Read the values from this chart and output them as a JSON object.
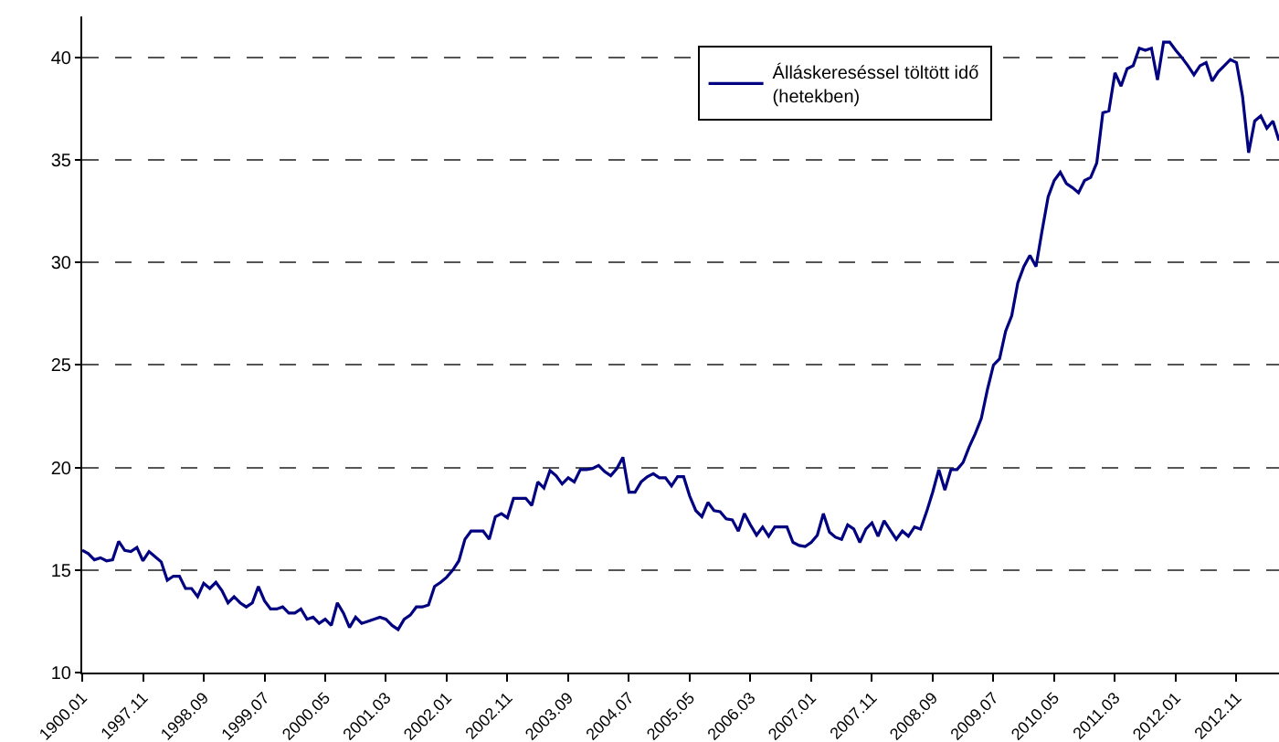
{
  "chart_data": {
    "type": "line",
    "categories": [
      "1900.01",
      null,
      null,
      null,
      null,
      null,
      null,
      null,
      null,
      null,
      "1997.11",
      null,
      null,
      null,
      null,
      null,
      null,
      null,
      null,
      null,
      "1998.09",
      null,
      null,
      null,
      null,
      null,
      null,
      null,
      null,
      null,
      "1999.07",
      null,
      null,
      null,
      null,
      null,
      null,
      null,
      null,
      null,
      "2000.05",
      null,
      null,
      null,
      null,
      null,
      null,
      null,
      null,
      null,
      "2001.03",
      null,
      null,
      null,
      null,
      null,
      null,
      null,
      null,
      null,
      "2002.01",
      null,
      null,
      null,
      null,
      null,
      null,
      null,
      null,
      null,
      "2002.11",
      null,
      null,
      null,
      null,
      null,
      null,
      null,
      null,
      null,
      "2003.09",
      null,
      null,
      null,
      null,
      null,
      null,
      null,
      null,
      null,
      "2004.07",
      null,
      null,
      null,
      null,
      null,
      null,
      null,
      null,
      null,
      "2005.05",
      null,
      null,
      null,
      null,
      null,
      null,
      null,
      null,
      null,
      "2006.03",
      null,
      null,
      null,
      null,
      null,
      null,
      null,
      null,
      null,
      "2007.01",
      null,
      null,
      null,
      null,
      null,
      null,
      null,
      null,
      null,
      "2007.11",
      null,
      null,
      null,
      null,
      null,
      null,
      null,
      null,
      null,
      "2008.09",
      null,
      null,
      null,
      null,
      null,
      null,
      null,
      null,
      null,
      "2009.07",
      null,
      null,
      null,
      null,
      null,
      null,
      null,
      null,
      null,
      "2010.05",
      null,
      null,
      null,
      null,
      null,
      null,
      null,
      null,
      null,
      "2011.03",
      null,
      null,
      null,
      null,
      null,
      null,
      null,
      null,
      null,
      "2012.01",
      null,
      null,
      null,
      null,
      null,
      null,
      null,
      null,
      null,
      "2012.11",
      null,
      null,
      null,
      null,
      null,
      null,
      null
    ],
    "series": [
      {
        "name": "Álláskereséssel töltött idő (hetekben)",
        "color": "#000080",
        "values": [
          15.96,
          15.8,
          15.5,
          15.6,
          15.45,
          15.5,
          16.4,
          15.96,
          15.9,
          16.1,
          15.45,
          15.9,
          15.65,
          15.4,
          14.5,
          14.7,
          14.7,
          14.1,
          14.1,
          13.7,
          14.35,
          14.1,
          14.4,
          14.0,
          13.4,
          13.7,
          13.4,
          13.2,
          13.4,
          14.2,
          13.5,
          13.1,
          13.1,
          13.2,
          12.9,
          12.9,
          13.1,
          12.6,
          12.7,
          12.4,
          12.6,
          12.3,
          13.4,
          12.9,
          12.2,
          12.7,
          12.4,
          12.5,
          12.6,
          12.7,
          12.6,
          12.3,
          12.1,
          12.6,
          12.8,
          13.2,
          13.2,
          13.3,
          14.2,
          14.4,
          14.65,
          15.0,
          15.45,
          16.5,
          16.9,
          16.9,
          16.9,
          16.5,
          17.6,
          17.75,
          17.55,
          18.5,
          18.5,
          18.5,
          18.15,
          19.3,
          19.0,
          19.85,
          19.6,
          19.2,
          19.5,
          19.3,
          19.9,
          19.9,
          19.95,
          20.1,
          19.8,
          19.6,
          19.95,
          20.5,
          18.8,
          18.8,
          19.3,
          19.55,
          19.7,
          19.5,
          19.5,
          19.1,
          19.55,
          19.55,
          18.6,
          17.9,
          17.6,
          18.3,
          17.9,
          17.85,
          17.5,
          17.45,
          16.9,
          17.75,
          17.2,
          16.7,
          17.1,
          16.65,
          17.1,
          17.1,
          17.1,
          16.35,
          16.2,
          16.15,
          16.35,
          16.7,
          17.75,
          16.85,
          16.6,
          16.5,
          17.2,
          17.0,
          16.35,
          17.0,
          17.3,
          16.65,
          17.4,
          16.95,
          16.5,
          16.9,
          16.65,
          17.1,
          17.0,
          17.85,
          18.8,
          19.9,
          18.9,
          19.9,
          19.9,
          20.25,
          21.0,
          21.65,
          22.4,
          23.8,
          25.0,
          25.3,
          26.65,
          27.4,
          29.0,
          29.8,
          30.35,
          29.8,
          31.55,
          33.2,
          34.0,
          34.4,
          33.85,
          33.65,
          33.4,
          34.0,
          34.15,
          34.85,
          37.3,
          37.4,
          39.25,
          38.6,
          39.45,
          39.6,
          40.45,
          40.35,
          40.45,
          38.9,
          40.75,
          40.75,
          40.35,
          40.0,
          39.6,
          39.15,
          39.6,
          39.75,
          38.85,
          39.3,
          39.6,
          39.9,
          39.75,
          38.1,
          35.35,
          36.9,
          37.15,
          36.55,
          36.9,
          35.95
        ]
      }
    ],
    "ylim": [
      10,
      42
    ],
    "yticks": [
      10,
      15,
      20,
      25,
      30,
      35,
      40
    ],
    "grid": "y",
    "legend": "top right",
    "marker": "none",
    "line_style": "solid"
  }
}
